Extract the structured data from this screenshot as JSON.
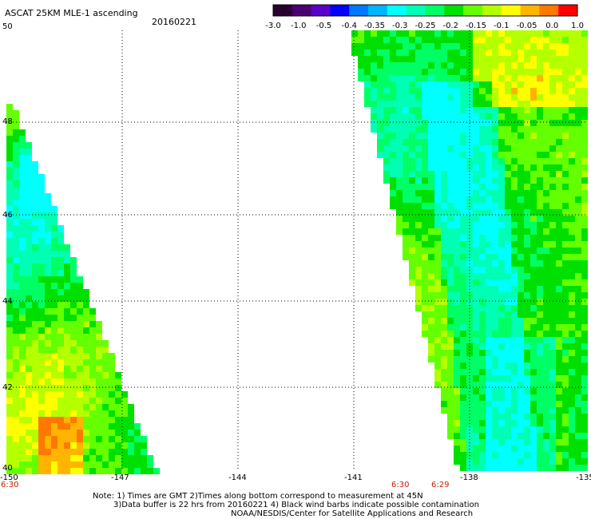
{
  "header": {
    "title": "ASCAT 25KM MLE-1 ascending",
    "date": "20160221"
  },
  "colorbar": {
    "colors": [
      "#2a0030",
      "#4a0070",
      "#5a00c8",
      "#0000ff",
      "#0078ff",
      "#00b4ff",
      "#00ffff",
      "#00ffb4",
      "#00ff64",
      "#00e000",
      "#64ff00",
      "#b4ff00",
      "#ffff00",
      "#ffb400",
      "#ff7800",
      "#ff0000"
    ],
    "labels": [
      "-3.0",
      "-1.0",
      "-0.5",
      "-0.4",
      "-0.35",
      "-0.3",
      "-0.25",
      "-0.2",
      "-0.15",
      "-0.1",
      "-0.05",
      "0.0",
      "1.0"
    ]
  },
  "map": {
    "lon_range": [
      -150,
      -135
    ],
    "lat_range": [
      40,
      50
    ],
    "lat_ticks": [
      "50",
      "48",
      "46",
      "44",
      "42",
      "40"
    ],
    "lon_ticks": [
      "-150",
      "-147",
      "-144",
      "-141",
      "-138",
      "-135"
    ],
    "time_labels": [
      "6:30",
      "6:30",
      "6:29"
    ]
  },
  "notes": {
    "line1": "Note: 1) Times are GMT 2)Times along bottom correspond to measurement at 45N",
    "line2": "3)Data buffer is 22 hrs from 20160221 4) Black wind barbs indicate possible contamination",
    "line3": "NOAA/NESDIS/Center for Satellite Applications and Research"
  }
}
